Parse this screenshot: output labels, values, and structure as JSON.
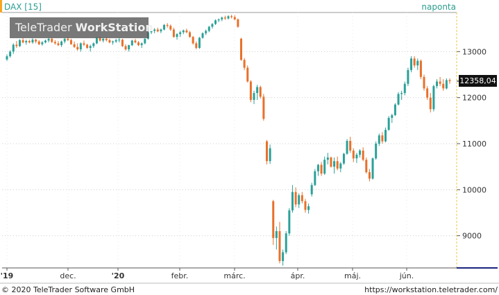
{
  "header": {
    "instrument": "DAX [15]",
    "period": "naponta"
  },
  "watermark": {
    "brand": "TeleTrader ",
    "product": "WorkStation"
  },
  "footer": {
    "copyright": "© 2020 TeleTrader Software GmbH",
    "url": "https://workstation.teletrader.com/"
  },
  "last_value": "12358,04",
  "colors": {
    "up": "#2aa198",
    "down": "#e8702a",
    "accent": "#f5a623",
    "grid": "#cccccc",
    "axis_blue": "#1a237e"
  },
  "chart_data": {
    "type": "candlestick",
    "title": "DAX [15]",
    "ylim": [
      8300,
      13850
    ],
    "y_ticks": [
      9000,
      10000,
      11000,
      12000,
      13000
    ],
    "x_tick_labels": [
      "'19",
      "dec.",
      "'20",
      "febr.",
      "márc.",
      "ápr.",
      "máj.",
      "jún."
    ],
    "last_value": 12358.04,
    "candles": [
      [
        12830,
        12940,
        12800,
        12900
      ],
      [
        12900,
        13030,
        12870,
        13000
      ],
      [
        13000,
        13180,
        12950,
        13150
      ],
      [
        13150,
        13230,
        13080,
        13120
      ],
      [
        13120,
        13270,
        13100,
        13250
      ],
      [
        13250,
        13300,
        13180,
        13200
      ],
      [
        13200,
        13260,
        13150,
        13230
      ],
      [
        13230,
        13260,
        13180,
        13200
      ],
      [
        13200,
        13290,
        13170,
        13260
      ],
      [
        13260,
        13280,
        13180,
        13220
      ],
      [
        13220,
        13250,
        13140,
        13160
      ],
      [
        13160,
        13230,
        13130,
        13200
      ],
      [
        13200,
        13260,
        13180,
        13240
      ],
      [
        13240,
        13300,
        13200,
        13280
      ],
      [
        13280,
        13310,
        13190,
        13210
      ],
      [
        13210,
        13250,
        13150,
        13180
      ],
      [
        13180,
        13230,
        13120,
        13140
      ],
      [
        13140,
        13240,
        13100,
        13220
      ],
      [
        13220,
        13300,
        13180,
        13280
      ],
      [
        13280,
        13320,
        13230,
        13250
      ],
      [
        13250,
        13280,
        13150,
        13160
      ],
      [
        13160,
        13220,
        13080,
        13100
      ],
      [
        13100,
        13180,
        13020,
        13050
      ],
      [
        13050,
        13200,
        13000,
        13180
      ],
      [
        13180,
        13240,
        13120,
        13150
      ],
      [
        13150,
        13170,
        13060,
        13080
      ],
      [
        13080,
        13150,
        13000,
        13120
      ],
      [
        13120,
        13200,
        13080,
        13180
      ],
      [
        13180,
        13320,
        13160,
        13300
      ],
      [
        13300,
        13330,
        13220,
        13240
      ],
      [
        13240,
        13300,
        13200,
        13280
      ],
      [
        13280,
        13310,
        13220,
        13250
      ],
      [
        13250,
        13280,
        13180,
        13200
      ],
      [
        13200,
        13240,
        13150,
        13220
      ],
      [
        13220,
        13280,
        13190,
        13250
      ],
      [
        13250,
        13300,
        13200,
        13260
      ],
      [
        13260,
        13280,
        13100,
        13120
      ],
      [
        13120,
        13160,
        13020,
        13050
      ],
      [
        13050,
        13150,
        13000,
        13140
      ],
      [
        13140,
        13260,
        13120,
        13240
      ],
      [
        13240,
        13280,
        13180,
        13200
      ],
      [
        13200,
        13230,
        13120,
        13140
      ],
      [
        13140,
        13200,
        13080,
        13180
      ],
      [
        13180,
        13290,
        13160,
        13280
      ],
      [
        13280,
        13440,
        13260,
        13420
      ],
      [
        13420,
        13480,
        13380,
        13450
      ],
      [
        13450,
        13510,
        13400,
        13480
      ],
      [
        13480,
        13520,
        13420,
        13440
      ],
      [
        13440,
        13500,
        13400,
        13480
      ],
      [
        13480,
        13600,
        13460,
        13580
      ],
      [
        13580,
        13620,
        13520,
        13560
      ],
      [
        13560,
        13590,
        13450,
        13480
      ],
      [
        13480,
        13520,
        13300,
        13320
      ],
      [
        13320,
        13400,
        13260,
        13380
      ],
      [
        13380,
        13450,
        13320,
        13420
      ],
      [
        13420,
        13480,
        13380,
        13460
      ],
      [
        13460,
        13500,
        13400,
        13420
      ],
      [
        13420,
        13450,
        13300,
        13320
      ],
      [
        13320,
        13340,
        13150,
        13180
      ],
      [
        13180,
        13220,
        13050,
        13080
      ],
      [
        13080,
        13320,
        13060,
        13300
      ],
      [
        13300,
        13420,
        13280,
        13400
      ],
      [
        13400,
        13480,
        13360,
        13450
      ],
      [
        13450,
        13560,
        13420,
        13540
      ],
      [
        13540,
        13620,
        13500,
        13600
      ],
      [
        13600,
        13700,
        13580,
        13680
      ],
      [
        13680,
        13720,
        13640,
        13700
      ],
      [
        13700,
        13760,
        13660,
        13740
      ],
      [
        13740,
        13780,
        13690,
        13720
      ],
      [
        13720,
        13790,
        13700,
        13770
      ],
      [
        13770,
        13800,
        13720,
        13750
      ],
      [
        13750,
        13790,
        13680,
        13700
      ],
      [
        13700,
        13720,
        13520,
        13540
      ],
      [
        13280,
        13300,
        12800,
        12820
      ],
      [
        12820,
        12860,
        12600,
        12650
      ],
      [
        12650,
        12700,
        12330,
        12350
      ],
      [
        12350,
        12380,
        11900,
        11950
      ],
      [
        11950,
        12150,
        11860,
        12100
      ],
      [
        12100,
        12280,
        11950,
        12230
      ],
      [
        12230,
        12260,
        11980,
        12020
      ],
      [
        12020,
        12080,
        11500,
        11540
      ],
      [
        11050,
        11080,
        10550,
        10620
      ],
      [
        10620,
        10980,
        10560,
        10900
      ],
      [
        9750,
        9780,
        8800,
        8950
      ],
      [
        8950,
        9200,
        8700,
        9100
      ],
      [
        9100,
        9300,
        8400,
        8450
      ],
      [
        8450,
        8700,
        8350,
        8640
      ],
      [
        8640,
        9100,
        8600,
        9050
      ],
      [
        9050,
        9600,
        9000,
        9550
      ],
      [
        9550,
        10100,
        9500,
        9950
      ],
      [
        9950,
        10050,
        9620,
        9680
      ],
      [
        9680,
        9920,
        9600,
        9880
      ],
      [
        9880,
        9950,
        9700,
        9750
      ],
      [
        9750,
        9800,
        9500,
        9560
      ],
      [
        9560,
        9700,
        9480,
        9640
      ],
      [
        9900,
        10150,
        9850,
        10100
      ],
      [
        10100,
        10450,
        10080,
        10400
      ],
      [
        10400,
        10560,
        10300,
        10540
      ],
      [
        10540,
        10600,
        10300,
        10350
      ],
      [
        10350,
        10720,
        10320,
        10650
      ],
      [
        10650,
        10800,
        10550,
        10700
      ],
      [
        10700,
        10720,
        10480,
        10500
      ],
      [
        10500,
        10700,
        10350,
        10620
      ],
      [
        10620,
        10720,
        10420,
        10460
      ],
      [
        10460,
        10600,
        10380,
        10570
      ],
      [
        10570,
        10800,
        10540,
        10780
      ],
      [
        10780,
        11100,
        10760,
        11060
      ],
      [
        11060,
        11150,
        10800,
        10850
      ],
      [
        10850,
        10900,
        10600,
        10680
      ],
      [
        10680,
        10800,
        10580,
        10760
      ],
      [
        10760,
        10880,
        10700,
        10850
      ],
      [
        10850,
        10920,
        10620,
        10650
      ],
      [
        10650,
        10700,
        10350,
        10380
      ],
      [
        10380,
        10450,
        10180,
        10240
      ],
      [
        10240,
        10700,
        10220,
        10680
      ],
      [
        10680,
        11050,
        10650,
        11000
      ],
      [
        11000,
        11220,
        10950,
        11180
      ],
      [
        11180,
        11250,
        11000,
        11050
      ],
      [
        11050,
        11350,
        11030,
        11300
      ],
      [
        11300,
        11600,
        11280,
        11560
      ],
      [
        11560,
        11650,
        11450,
        11620
      ],
      [
        11620,
        11880,
        11600,
        11850
      ],
      [
        11850,
        12120,
        11830,
        12080
      ],
      [
        12080,
        12150,
        11950,
        12100
      ],
      [
        12100,
        12350,
        12050,
        12300
      ],
      [
        12300,
        12650,
        12250,
        12600
      ],
      [
        12600,
        12900,
        12550,
        12850
      ],
      [
        12850,
        12900,
        12650,
        12700
      ],
      [
        12700,
        12850,
        12600,
        12800
      ],
      [
        12800,
        12830,
        12400,
        12450
      ],
      [
        12450,
        12500,
        12150,
        12200
      ],
      [
        12200,
        12250,
        11950,
        12000
      ],
      [
        12000,
        12100,
        11680,
        11750
      ],
      [
        11750,
        12280,
        11700,
        12250
      ],
      [
        12250,
        12400,
        12200,
        12350
      ],
      [
        12350,
        12450,
        12250,
        12300
      ],
      [
        12300,
        12400,
        12150,
        12200
      ],
      [
        12200,
        12420,
        12180,
        12380
      ],
      [
        12380,
        12420,
        12300,
        12358
      ]
    ]
  }
}
